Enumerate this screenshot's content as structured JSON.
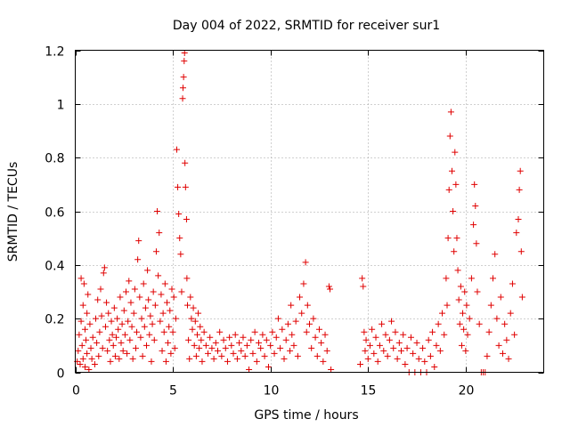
{
  "chart_data": {
    "type": "scatter",
    "title": "Day 004 of 2022, SRMTID for receiver sur1",
    "xlabel": "GPS time / hours",
    "ylabel": "SRMTID / TECUs",
    "xlim": [
      0,
      24
    ],
    "ylim": [
      0,
      1.2
    ],
    "xticks": [
      0,
      5,
      10,
      15,
      20
    ],
    "xtick_labels": [
      "0",
      "5",
      "10",
      "15",
      "20"
    ],
    "yticks": [
      0,
      0.2,
      0.4,
      0.6,
      0.8,
      1,
      1.2
    ],
    "ytick_labels": [
      "0",
      "0.2",
      "0.4",
      "0.6",
      "0.8",
      "1",
      "1.2"
    ],
    "grid": true,
    "marker": "+",
    "marker_color": "#e00000",
    "series": [
      {
        "name": "sur1",
        "points": [
          [
            0.1,
            0.04
          ],
          [
            0.15,
            0.08
          ],
          [
            0.2,
            0.14
          ],
          [
            0.25,
            0.03
          ],
          [
            0.3,
            0.19
          ],
          [
            0.3,
            0.35
          ],
          [
            0.35,
            0.1
          ],
          [
            0.4,
            0.25
          ],
          [
            0.4,
            0.05
          ],
          [
            0.45,
            0.33
          ],
          [
            0.5,
            0.16
          ],
          [
            0.5,
            0.02
          ],
          [
            0.55,
            0.12
          ],
          [
            0.6,
            0.22
          ],
          [
            0.6,
            0.07
          ],
          [
            0.65,
            0.29
          ],
          [
            0.7,
            0.01
          ],
          [
            0.75,
            0.18
          ],
          [
            0.8,
            0.09
          ],
          [
            0.85,
            0.05
          ],
          [
            0.9,
            0.13
          ],
          [
            1.0,
            0.03
          ],
          [
            1.05,
            0.2
          ],
          [
            1.1,
            0.11
          ],
          [
            1.15,
            0.27
          ],
          [
            1.2,
            0.06
          ],
          [
            1.25,
            0.15
          ],
          [
            1.3,
            0.31
          ],
          [
            1.35,
            0.21
          ],
          [
            1.4,
            0.09
          ],
          [
            1.45,
            0.37
          ],
          [
            1.5,
            0.39
          ],
          [
            1.55,
            0.17
          ],
          [
            1.6,
            0.26
          ],
          [
            1.65,
            0.08
          ],
          [
            1.7,
            0.22
          ],
          [
            1.75,
            0.12
          ],
          [
            1.8,
            0.04
          ],
          [
            1.85,
            0.19
          ],
          [
            1.9,
            0.14
          ],
          [
            1.95,
            0.1
          ],
          [
            2.0,
            0.24
          ],
          [
            2.05,
            0.06
          ],
          [
            2.1,
            0.13
          ],
          [
            2.15,
            0.2
          ],
          [
            2.2,
            0.16
          ],
          [
            2.25,
            0.05
          ],
          [
            2.3,
            0.28
          ],
          [
            2.35,
            0.11
          ],
          [
            2.4,
            0.18
          ],
          [
            2.45,
            0.08
          ],
          [
            2.5,
            0.23
          ],
          [
            2.55,
            0.14
          ],
          [
            2.6,
            0.3
          ],
          [
            2.65,
            0.07
          ],
          [
            2.7,
            0.19
          ],
          [
            2.75,
            0.34
          ],
          [
            2.8,
            0.12
          ],
          [
            2.85,
            0.26
          ],
          [
            2.9,
            0.17
          ],
          [
            2.95,
            0.05
          ],
          [
            3.0,
            0.22
          ],
          [
            3.05,
            0.31
          ],
          [
            3.1,
            0.09
          ],
          [
            3.15,
            0.15
          ],
          [
            3.2,
            0.42
          ],
          [
            3.25,
            0.49
          ],
          [
            3.3,
            0.28
          ],
          [
            3.35,
            0.13
          ],
          [
            3.4,
            0.2
          ],
          [
            3.45,
            0.06
          ],
          [
            3.5,
            0.33
          ],
          [
            3.55,
            0.17
          ],
          [
            3.6,
            0.24
          ],
          [
            3.65,
            0.1
          ],
          [
            3.7,
            0.38
          ],
          [
            3.75,
            0.27
          ],
          [
            3.8,
            0.14
          ],
          [
            3.85,
            0.21
          ],
          [
            3.9,
            0.04
          ],
          [
            3.95,
            0.18
          ],
          [
            4.0,
            0.3
          ],
          [
            4.05,
            0.12
          ],
          [
            4.1,
            0.25
          ],
          [
            4.15,
            0.45
          ],
          [
            4.2,
            0.6
          ],
          [
            4.25,
            0.36
          ],
          [
            4.3,
            0.52
          ],
          [
            4.35,
            0.19
          ],
          [
            4.4,
            0.29
          ],
          [
            4.45,
            0.08
          ],
          [
            4.5,
            0.22
          ],
          [
            4.55,
            0.15
          ],
          [
            4.6,
            0.33
          ],
          [
            4.65,
            0.04
          ],
          [
            4.7,
            0.26
          ],
          [
            4.75,
            0.11
          ],
          [
            4.8,
            0.17
          ],
          [
            4.85,
            0.23
          ],
          [
            4.9,
            0.07
          ],
          [
            4.95,
            0.31
          ],
          [
            5.0,
            0.15
          ],
          [
            5.05,
            0.28
          ],
          [
            5.1,
            0.09
          ],
          [
            5.15,
            0.2
          ],
          [
            5.2,
            0.83
          ],
          [
            5.25,
            0.69
          ],
          [
            5.3,
            0.59
          ],
          [
            5.35,
            0.5
          ],
          [
            5.4,
            0.44
          ],
          [
            5.45,
            0.3
          ],
          [
            5.5,
            1.02
          ],
          [
            5.52,
            1.06
          ],
          [
            5.55,
            1.1
          ],
          [
            5.58,
            1.16
          ],
          [
            5.6,
            1.19
          ],
          [
            5.62,
            0.78
          ],
          [
            5.65,
            0.69
          ],
          [
            5.7,
            0.57
          ],
          [
            5.72,
            0.35
          ],
          [
            5.75,
            0.25
          ],
          [
            5.8,
            0.12
          ],
          [
            5.85,
            0.05
          ],
          [
            5.9,
            0.28
          ],
          [
            5.95,
            0.2
          ],
          [
            6.0,
            0.16
          ],
          [
            6.05,
            0.24
          ],
          [
            6.1,
            0.1
          ],
          [
            6.15,
            0.19
          ],
          [
            6.2,
            0.06
          ],
          [
            6.25,
            0.14
          ],
          [
            6.3,
            0.22
          ],
          [
            6.35,
            0.09
          ],
          [
            6.4,
            0.17
          ],
          [
            6.45,
            0.12
          ],
          [
            6.5,
            0.04
          ],
          [
            6.6,
            0.15
          ],
          [
            6.7,
            0.1
          ],
          [
            6.8,
            0.07
          ],
          [
            6.9,
            0.13
          ],
          [
            7.0,
            0.09
          ],
          [
            7.1,
            0.05
          ],
          [
            7.2,
            0.11
          ],
          [
            7.3,
            0.08
          ],
          [
            7.4,
            0.15
          ],
          [
            7.5,
            0.06
          ],
          [
            7.6,
            0.12
          ],
          [
            7.7,
            0.09
          ],
          [
            7.8,
            0.04
          ],
          [
            7.9,
            0.13
          ],
          [
            8.0,
            0.1
          ],
          [
            8.1,
            0.07
          ],
          [
            8.2,
            0.14
          ],
          [
            8.3,
            0.05
          ],
          [
            8.4,
            0.11
          ],
          [
            8.5,
            0.08
          ],
          [
            8.6,
            0.13
          ],
          [
            8.7,
            0.06
          ],
          [
            8.8,
            0.1
          ],
          [
            8.9,
            0.01
          ],
          [
            9.0,
            0.12
          ],
          [
            9.1,
            0.07
          ],
          [
            9.2,
            0.15
          ],
          [
            9.3,
            0.04
          ],
          [
            9.4,
            0.11
          ],
          [
            9.5,
            0.09
          ],
          [
            9.6,
            0.14
          ],
          [
            9.7,
            0.06
          ],
          [
            9.8,
            0.12
          ],
          [
            9.9,
            0.02
          ],
          [
            10.0,
            0.1
          ],
          [
            10.1,
            0.15
          ],
          [
            10.2,
            0.07
          ],
          [
            10.3,
            0.13
          ],
          [
            10.4,
            0.2
          ],
          [
            10.5,
            0.09
          ],
          [
            10.6,
            0.16
          ],
          [
            10.7,
            0.05
          ],
          [
            10.8,
            0.12
          ],
          [
            10.9,
            0.18
          ],
          [
            11.0,
            0.08
          ],
          [
            11.05,
            0.25
          ],
          [
            11.1,
            0.14
          ],
          [
            11.2,
            0.1
          ],
          [
            11.3,
            0.19
          ],
          [
            11.4,
            0.06
          ],
          [
            11.5,
            0.28
          ],
          [
            11.6,
            0.22
          ],
          [
            11.7,
            0.33
          ],
          [
            11.8,
            0.41
          ],
          [
            11.85,
            0.15
          ],
          [
            11.9,
            0.25
          ],
          [
            12.0,
            0.18
          ],
          [
            12.1,
            0.09
          ],
          [
            12.2,
            0.2
          ],
          [
            12.3,
            0.13
          ],
          [
            12.4,
            0.06
          ],
          [
            12.5,
            0.16
          ],
          [
            12.6,
            0.11
          ],
          [
            12.7,
            0.04
          ],
          [
            12.8,
            0.14
          ],
          [
            12.9,
            0.08
          ],
          [
            13.0,
            0.32
          ],
          [
            13.05,
            0.31
          ],
          [
            13.1,
            0.01
          ],
          [
            14.6,
            0.03
          ],
          [
            14.7,
            0.35
          ],
          [
            14.75,
            0.32
          ],
          [
            14.8,
            0.15
          ],
          [
            14.85,
            0.08
          ],
          [
            14.9,
            0.12
          ],
          [
            15.0,
            0.05
          ],
          [
            15.1,
            0.1
          ],
          [
            15.2,
            0.16
          ],
          [
            15.3,
            0.07
          ],
          [
            15.4,
            0.13
          ],
          [
            15.5,
            0.04
          ],
          [
            15.6,
            0.1
          ],
          [
            15.7,
            0.18
          ],
          [
            15.8,
            0.08
          ],
          [
            15.9,
            0.14
          ],
          [
            16.0,
            0.06
          ],
          [
            16.1,
            0.12
          ],
          [
            16.2,
            0.19
          ],
          [
            16.3,
            0.09
          ],
          [
            16.4,
            0.15
          ],
          [
            16.5,
            0.05
          ],
          [
            16.6,
            0.11
          ],
          [
            16.7,
            0.08
          ],
          [
            16.8,
            0.14
          ],
          [
            16.9,
            0.03
          ],
          [
            17.0,
            0.09
          ],
          [
            17.1,
            0.0
          ],
          [
            17.2,
            0.13
          ],
          [
            17.3,
            0.07
          ],
          [
            17.4,
            0.0
          ],
          [
            17.5,
            0.11
          ],
          [
            17.6,
            0.05
          ],
          [
            17.7,
            0.0
          ],
          [
            17.8,
            0.09
          ],
          [
            17.9,
            0.04
          ],
          [
            18.0,
            0.0
          ],
          [
            18.1,
            0.12
          ],
          [
            18.2,
            0.06
          ],
          [
            18.3,
            0.15
          ],
          [
            18.4,
            0.02
          ],
          [
            18.5,
            0.1
          ],
          [
            18.6,
            0.18
          ],
          [
            18.7,
            0.08
          ],
          [
            18.8,
            0.22
          ],
          [
            18.9,
            0.14
          ],
          [
            19.0,
            0.35
          ],
          [
            19.05,
            0.25
          ],
          [
            19.1,
            0.5
          ],
          [
            19.15,
            0.68
          ],
          [
            19.2,
            0.88
          ],
          [
            19.25,
            0.97
          ],
          [
            19.3,
            0.75
          ],
          [
            19.35,
            0.6
          ],
          [
            19.4,
            0.45
          ],
          [
            19.45,
            0.82
          ],
          [
            19.5,
            0.7
          ],
          [
            19.55,
            0.5
          ],
          [
            19.6,
            0.38
          ],
          [
            19.65,
            0.27
          ],
          [
            19.7,
            0.18
          ],
          [
            19.75,
            0.32
          ],
          [
            19.8,
            0.1
          ],
          [
            19.85,
            0.22
          ],
          [
            19.9,
            0.16
          ],
          [
            19.95,
            0.3
          ],
          [
            20.0,
            0.08
          ],
          [
            20.05,
            0.25
          ],
          [
            20.1,
            0.14
          ],
          [
            20.2,
            0.2
          ],
          [
            20.3,
            0.35
          ],
          [
            20.4,
            0.55
          ],
          [
            20.45,
            0.7
          ],
          [
            20.5,
            0.62
          ],
          [
            20.55,
            0.48
          ],
          [
            20.6,
            0.3
          ],
          [
            20.7,
            0.18
          ],
          [
            20.8,
            0.0
          ],
          [
            20.9,
            0.0
          ],
          [
            21.0,
            0.0
          ],
          [
            21.1,
            0.06
          ],
          [
            21.2,
            0.15
          ],
          [
            21.3,
            0.25
          ],
          [
            21.4,
            0.35
          ],
          [
            21.5,
            0.44
          ],
          [
            21.6,
            0.2
          ],
          [
            21.7,
            0.1
          ],
          [
            21.8,
            0.28
          ],
          [
            21.9,
            0.07
          ],
          [
            22.0,
            0.18
          ],
          [
            22.1,
            0.12
          ],
          [
            22.2,
            0.05
          ],
          [
            22.3,
            0.22
          ],
          [
            22.4,
            0.33
          ],
          [
            22.5,
            0.14
          ],
          [
            22.6,
            0.52
          ],
          [
            22.7,
            0.57
          ],
          [
            22.75,
            0.68
          ],
          [
            22.8,
            0.75
          ],
          [
            22.85,
            0.45
          ],
          [
            22.9,
            0.28
          ]
        ]
      }
    ]
  }
}
